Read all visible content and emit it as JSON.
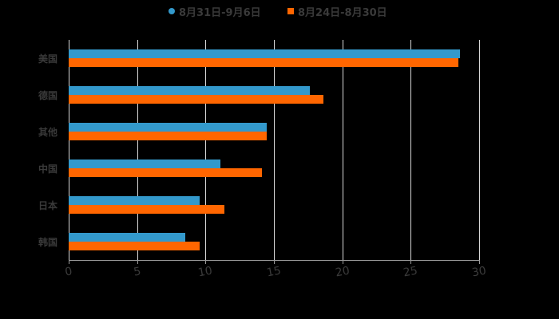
{
  "chart_data": {
    "type": "bar",
    "orientation": "horizontal",
    "title": "",
    "xlabel": "",
    "ylabel": "",
    "categories": [
      "美国",
      "德国",
      "其他",
      "中国",
      "日本",
      "韩国"
    ],
    "series": [
      {
        "name": "8月31日-9月6日",
        "color": "#3399cc",
        "values": [
          28.6,
          17.6,
          14.5,
          11.1,
          9.6,
          8.5
        ]
      },
      {
        "name": "8月24日-8月30日",
        "color": "#ff6600",
        "values": [
          28.5,
          18.6,
          14.5,
          14.1,
          11.4,
          9.6
        ]
      }
    ],
    "xlim": [
      0,
      30
    ],
    "xticks": [
      "0",
      "5",
      "10",
      "15",
      "20",
      "25",
      "30"
    ],
    "grid": true,
    "legend_position": "top"
  },
  "legend": {
    "items": [
      {
        "label": "8月31日-9月6日",
        "color": "#3399cc",
        "marker": "circle"
      },
      {
        "label": "8月24日-8月30日",
        "color": "#ff6600",
        "marker": "square"
      }
    ]
  }
}
